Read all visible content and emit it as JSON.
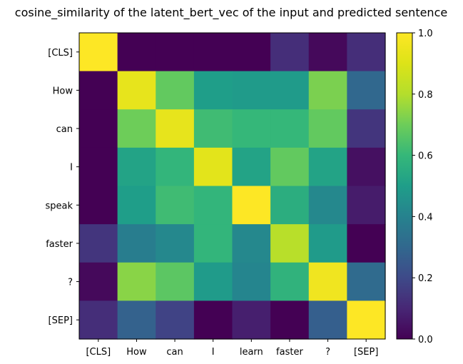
{
  "chart_data": {
    "type": "heatmap",
    "title": "cosine_similarity of the latent_bert_vec of the input and predicted sentence",
    "xlabel": "",
    "ylabel": "",
    "x_categories": [
      "[CLS]",
      "How",
      "can",
      "I",
      "learn",
      "faster",
      "?",
      "[SEP]"
    ],
    "y_categories": [
      "[CLS]",
      "How",
      "can",
      "I",
      "speak",
      "faster",
      "?",
      "[SEP]"
    ],
    "values": [
      [
        1.0,
        0.0,
        0.0,
        0.0,
        0.0,
        0.12,
        0.02,
        0.12
      ],
      [
        0.0,
        0.93,
        0.68,
        0.5,
        0.49,
        0.49,
        0.72,
        0.3
      ],
      [
        0.0,
        0.7,
        0.93,
        0.62,
        0.6,
        0.6,
        0.68,
        0.14
      ],
      [
        0.0,
        0.52,
        0.59,
        0.92,
        0.52,
        0.68,
        0.52,
        0.04
      ],
      [
        0.0,
        0.5,
        0.62,
        0.59,
        1.0,
        0.56,
        0.42,
        0.07
      ],
      [
        0.14,
        0.38,
        0.42,
        0.59,
        0.42,
        0.81,
        0.49,
        0.0
      ],
      [
        0.02,
        0.74,
        0.67,
        0.49,
        0.41,
        0.58,
        0.96,
        0.31
      ],
      [
        0.12,
        0.28,
        0.18,
        0.0,
        0.08,
        0.0,
        0.27,
        1.0
      ]
    ],
    "colormap": "viridis",
    "colorbar": {
      "min": 0.0,
      "max": 1.0,
      "ticks": [
        "0.0",
        "0.2",
        "0.4",
        "0.6",
        "0.8",
        "1.0"
      ]
    },
    "grid": false,
    "legend": "colorbar-right"
  }
}
